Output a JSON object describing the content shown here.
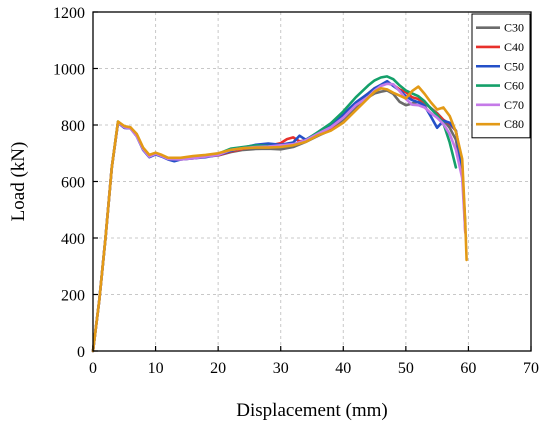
{
  "chart_data": {
    "type": "line",
    "xlabel": "Displacement (mm)",
    "ylabel": "Load (kN)",
    "xlim": [
      0,
      70
    ],
    "ylim": [
      0,
      1200
    ],
    "xticks": [
      0,
      10,
      20,
      30,
      40,
      50,
      60,
      70
    ],
    "yticks": [
      0,
      200,
      400,
      600,
      800,
      1000,
      1200
    ],
    "grid": true,
    "legend_position": "top-right",
    "series": [
      {
        "name": "C30",
        "color": "#6b6b6b",
        "points": [
          [
            0,
            0
          ],
          [
            1,
            180
          ],
          [
            2,
            400
          ],
          [
            3,
            650
          ],
          [
            4,
            810
          ],
          [
            5,
            790
          ],
          [
            6,
            790
          ],
          [
            7,
            760
          ],
          [
            8,
            715
          ],
          [
            9,
            688
          ],
          [
            10,
            700
          ],
          [
            11,
            692
          ],
          [
            12,
            680
          ],
          [
            13,
            676
          ],
          [
            14,
            678
          ],
          [
            16,
            682
          ],
          [
            18,
            688
          ],
          [
            20,
            692
          ],
          [
            22,
            704
          ],
          [
            24,
            712
          ],
          [
            26,
            715
          ],
          [
            28,
            716
          ],
          [
            30,
            714
          ],
          [
            32,
            722
          ],
          [
            34,
            740
          ],
          [
            36,
            762
          ],
          [
            38,
            782
          ],
          [
            40,
            820
          ],
          [
            42,
            862
          ],
          [
            44,
            898
          ],
          [
            45,
            912
          ],
          [
            46,
            918
          ],
          [
            47,
            922
          ],
          [
            48,
            910
          ],
          [
            49,
            882
          ],
          [
            50,
            870
          ],
          [
            51,
            876
          ],
          [
            52,
            882
          ],
          [
            53,
            878
          ],
          [
            54,
            860
          ],
          [
            55,
            842
          ],
          [
            56,
            818
          ],
          [
            57,
            790
          ],
          [
            58,
            748
          ],
          [
            59,
            632
          ],
          [
            59.5,
            450
          ]
        ]
      },
      {
        "name": "C40",
        "color": "#e8302b",
        "points": [
          [
            0,
            0
          ],
          [
            1,
            180
          ],
          [
            2,
            400
          ],
          [
            3,
            650
          ],
          [
            4,
            810
          ],
          [
            5,
            792
          ],
          [
            6,
            790
          ],
          [
            7,
            765
          ],
          [
            8,
            718
          ],
          [
            9,
            690
          ],
          [
            10,
            700
          ],
          [
            11,
            690
          ],
          [
            12,
            683
          ],
          [
            14,
            680
          ],
          [
            16,
            684
          ],
          [
            18,
            690
          ],
          [
            20,
            693
          ],
          [
            22,
            706
          ],
          [
            24,
            716
          ],
          [
            26,
            722
          ],
          [
            28,
            726
          ],
          [
            30,
            736
          ],
          [
            31,
            750
          ],
          [
            32,
            756
          ],
          [
            33,
            742
          ],
          [
            34,
            746
          ],
          [
            36,
            768
          ],
          [
            38,
            788
          ],
          [
            40,
            830
          ],
          [
            42,
            878
          ],
          [
            44,
            912
          ],
          [
            45,
            930
          ],
          [
            46,
            940
          ],
          [
            47,
            948
          ],
          [
            48,
            942
          ],
          [
            49,
            926
          ],
          [
            50,
            916
          ],
          [
            51,
            898
          ],
          [
            52,
            892
          ],
          [
            53,
            882
          ],
          [
            54,
            858
          ],
          [
            55,
            840
          ],
          [
            56,
            818
          ],
          [
            57,
            804
          ],
          [
            58,
            780
          ],
          [
            59,
            660
          ],
          [
            59.5,
            420
          ]
        ]
      },
      {
        "name": "C50",
        "color": "#2450c8",
        "points": [
          [
            0,
            0
          ],
          [
            1,
            180
          ],
          [
            2,
            400
          ],
          [
            3,
            650
          ],
          [
            4,
            808
          ],
          [
            5,
            790
          ],
          [
            6,
            788
          ],
          [
            7,
            760
          ],
          [
            8,
            712
          ],
          [
            9,
            686
          ],
          [
            10,
            696
          ],
          [
            11,
            688
          ],
          [
            12,
            678
          ],
          [
            13,
            672
          ],
          [
            14,
            678
          ],
          [
            16,
            682
          ],
          [
            18,
            686
          ],
          [
            20,
            694
          ],
          [
            22,
            708
          ],
          [
            24,
            720
          ],
          [
            26,
            730
          ],
          [
            28,
            734
          ],
          [
            30,
            730
          ],
          [
            32,
            738
          ],
          [
            33,
            762
          ],
          [
            34,
            748
          ],
          [
            36,
            774
          ],
          [
            38,
            798
          ],
          [
            40,
            838
          ],
          [
            42,
            880
          ],
          [
            44,
            912
          ],
          [
            45,
            930
          ],
          [
            46,
            942
          ],
          [
            47,
            955
          ],
          [
            48,
            938
          ],
          [
            49,
            922
          ],
          [
            50,
            902
          ],
          [
            51,
            888
          ],
          [
            52,
            880
          ],
          [
            53,
            868
          ],
          [
            54,
            830
          ],
          [
            55,
            790
          ],
          [
            56,
            815
          ],
          [
            57,
            808
          ],
          [
            58,
            780
          ],
          [
            59,
            640
          ],
          [
            59.5,
            440
          ]
        ]
      },
      {
        "name": "C60",
        "color": "#14a06a",
        "points": [
          [
            0,
            0
          ],
          [
            1,
            180
          ],
          [
            2,
            400
          ],
          [
            3,
            650
          ],
          [
            4,
            812
          ],
          [
            5,
            794
          ],
          [
            6,
            790
          ],
          [
            7,
            762
          ],
          [
            8,
            716
          ],
          [
            9,
            690
          ],
          [
            10,
            700
          ],
          [
            11,
            692
          ],
          [
            12,
            682
          ],
          [
            14,
            682
          ],
          [
            16,
            688
          ],
          [
            18,
            692
          ],
          [
            20,
            698
          ],
          [
            22,
            716
          ],
          [
            24,
            722
          ],
          [
            26,
            728
          ],
          [
            28,
            726
          ],
          [
            30,
            722
          ],
          [
            32,
            730
          ],
          [
            34,
            746
          ],
          [
            36,
            776
          ],
          [
            38,
            806
          ],
          [
            40,
            848
          ],
          [
            42,
            898
          ],
          [
            44,
            940
          ],
          [
            45,
            958
          ],
          [
            46,
            968
          ],
          [
            47,
            972
          ],
          [
            48,
            962
          ],
          [
            49,
            940
          ],
          [
            50,
            922
          ],
          [
            51,
            912
          ],
          [
            52,
            902
          ],
          [
            53,
            884
          ],
          [
            54,
            858
          ],
          [
            55,
            835
          ],
          [
            56,
            806
          ],
          [
            57,
            738
          ],
          [
            58,
            650
          ]
        ]
      },
      {
        "name": "C70",
        "color": "#c57ae8",
        "points": [
          [
            0,
            0
          ],
          [
            1,
            180
          ],
          [
            2,
            400
          ],
          [
            3,
            650
          ],
          [
            4,
            810
          ],
          [
            5,
            792
          ],
          [
            6,
            788
          ],
          [
            7,
            760
          ],
          [
            8,
            714
          ],
          [
            9,
            688
          ],
          [
            10,
            698
          ],
          [
            11,
            690
          ],
          [
            12,
            680
          ],
          [
            14,
            678
          ],
          [
            16,
            682
          ],
          [
            18,
            688
          ],
          [
            20,
            694
          ],
          [
            22,
            712
          ],
          [
            24,
            718
          ],
          [
            26,
            722
          ],
          [
            28,
            724
          ],
          [
            30,
            728
          ],
          [
            32,
            732
          ],
          [
            34,
            746
          ],
          [
            36,
            770
          ],
          [
            38,
            792
          ],
          [
            40,
            826
          ],
          [
            42,
            870
          ],
          [
            44,
            900
          ],
          [
            45,
            922
          ],
          [
            46,
            938
          ],
          [
            47,
            946
          ],
          [
            48,
            944
          ],
          [
            49,
            920
          ],
          [
            50,
            892
          ],
          [
            51,
            872
          ],
          [
            52,
            870
          ],
          [
            53,
            862
          ],
          [
            54,
            842
          ],
          [
            55,
            826
          ],
          [
            56,
            804
          ],
          [
            57,
            768
          ],
          [
            58,
            712
          ],
          [
            59,
            612
          ],
          [
            59.5,
            420
          ]
        ]
      },
      {
        "name": "C80",
        "color": "#e39a16",
        "points": [
          [
            0,
            0
          ],
          [
            1,
            180
          ],
          [
            2,
            400
          ],
          [
            3,
            650
          ],
          [
            4,
            812
          ],
          [
            5,
            796
          ],
          [
            6,
            792
          ],
          [
            7,
            768
          ],
          [
            8,
            720
          ],
          [
            9,
            694
          ],
          [
            10,
            702
          ],
          [
            11,
            694
          ],
          [
            12,
            684
          ],
          [
            14,
            684
          ],
          [
            16,
            690
          ],
          [
            18,
            694
          ],
          [
            20,
            700
          ],
          [
            22,
            712
          ],
          [
            24,
            718
          ],
          [
            26,
            720
          ],
          [
            28,
            720
          ],
          [
            30,
            722
          ],
          [
            32,
            728
          ],
          [
            34,
            740
          ],
          [
            36,
            764
          ],
          [
            38,
            780
          ],
          [
            40,
            808
          ],
          [
            42,
            852
          ],
          [
            44,
            896
          ],
          [
            45,
            918
          ],
          [
            46,
            930
          ],
          [
            47,
            926
          ],
          [
            48,
            914
          ],
          [
            49,
            904
          ],
          [
            50,
            894
          ],
          [
            51,
            920
          ],
          [
            52,
            936
          ],
          [
            53,
            910
          ],
          [
            54,
            880
          ],
          [
            55,
            855
          ],
          [
            56,
            862
          ],
          [
            57,
            832
          ],
          [
            58,
            776
          ],
          [
            59,
            680
          ],
          [
            59.5,
            450
          ],
          [
            59.7,
            322
          ]
        ]
      }
    ]
  }
}
